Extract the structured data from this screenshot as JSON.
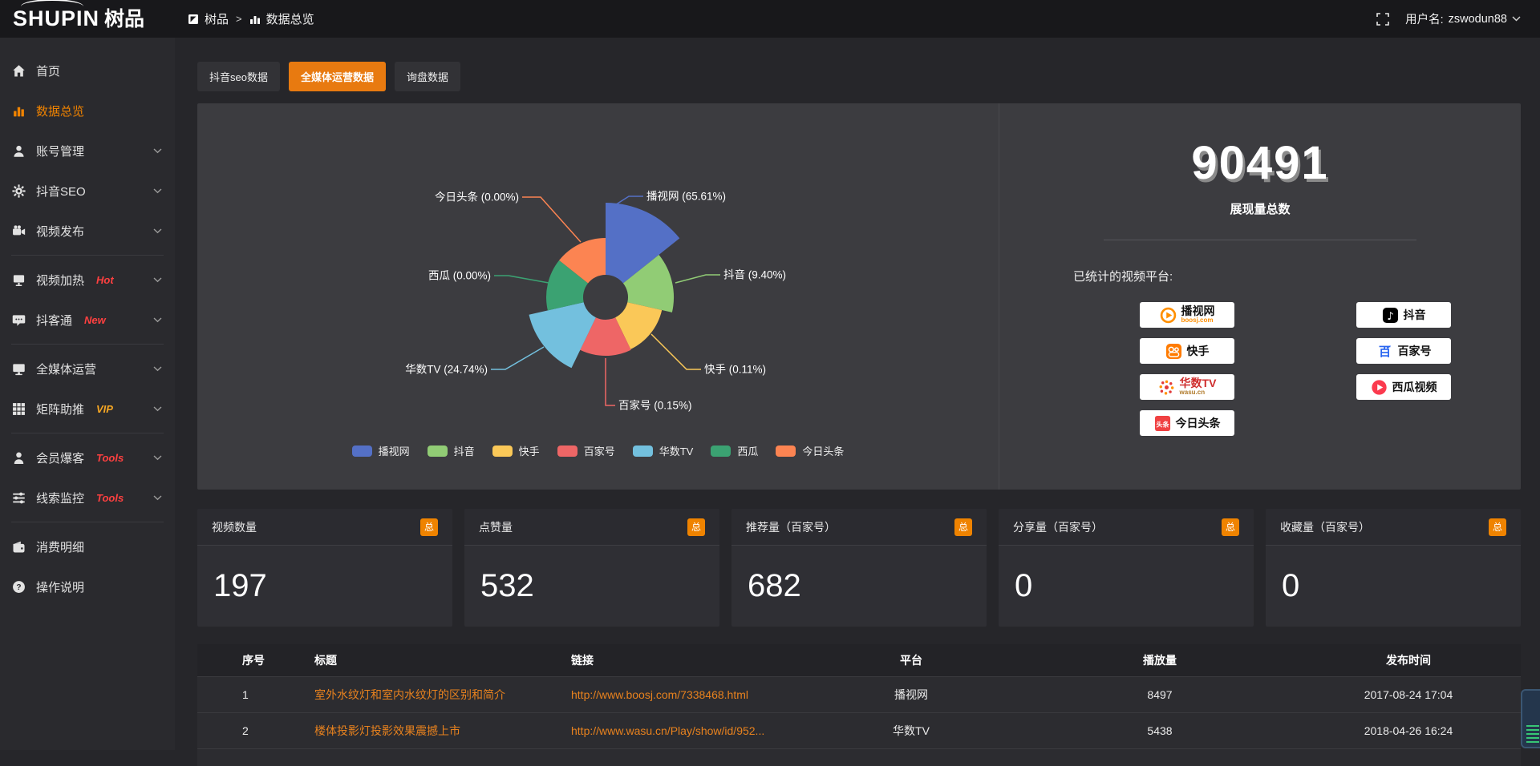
{
  "topbar": {
    "logo_text": "SHUPIN",
    "logo_suffix": "树品",
    "breadcrumb": {
      "root": "树品",
      "separator": ">",
      "current": "数据总览"
    },
    "username_label": "用户名:",
    "username": "zswodun88"
  },
  "sidebar": {
    "groups": [
      [
        {
          "label": "首页",
          "icon": "home-icon"
        },
        {
          "label": "数据总览",
          "icon": "bar-chart-icon",
          "active": true
        },
        {
          "label": "账号管理",
          "icon": "user-icon",
          "chevron": true
        },
        {
          "label": "抖音SEO",
          "icon": "gear-icon",
          "chevron": true
        },
        {
          "label": "视频发布",
          "icon": "video-camera-icon",
          "chevron": true
        }
      ],
      [
        {
          "label": "视频加热",
          "icon": "screen-icon",
          "badge": "Hot",
          "badge_color": "#ff4040",
          "chevron": true
        },
        {
          "label": "抖客通",
          "icon": "chat-icon",
          "badge": "New",
          "badge_color": "#ff4040",
          "chevron": true
        }
      ],
      [
        {
          "label": "全媒体运营",
          "icon": "monitor-icon",
          "chevron": true
        },
        {
          "label": "矩阵助推",
          "icon": "grid-icon",
          "badge": "VIP",
          "badge_color": "#f5a623",
          "chevron": true
        }
      ],
      [
        {
          "label": "会员爆客",
          "icon": "person-icon",
          "badge": "Tools",
          "badge_color": "#ff4040",
          "chevron": true
        },
        {
          "label": "线索监控",
          "icon": "sliders-icon",
          "badge": "Tools",
          "badge_color": "#ff4040",
          "chevron": true
        }
      ],
      [
        {
          "label": "消费明细",
          "icon": "wallet-icon"
        },
        {
          "label": "操作说明",
          "icon": "question-icon"
        }
      ]
    ]
  },
  "tabs": [
    {
      "label": "抖音seo数据",
      "active": false
    },
    {
      "label": "全媒体运营数据",
      "active": true
    },
    {
      "label": "询盘数据",
      "active": false
    }
  ],
  "chart_data": {
    "type": "pie",
    "style": "rose",
    "categories": [
      "播视网",
      "抖音",
      "快手",
      "百家号",
      "华数TV",
      "西瓜",
      "今日头条"
    ],
    "values": [
      65.61,
      9.4,
      0.11,
      0.15,
      24.74,
      0.0,
      0.0
    ],
    "percent_labels": [
      "65.61%",
      "9.40%",
      "0.11%",
      "0.15%",
      "24.74%",
      "0.00%",
      "0.00%"
    ],
    "colors": [
      "#5470c6",
      "#91cc75",
      "#fac858",
      "#ee6666",
      "#73c0de",
      "#3ba272",
      "#fc8452"
    ],
    "legend_position": "bottom",
    "unit": "percent"
  },
  "summary": {
    "total_value": "90491",
    "total_label": "展现量总数",
    "platforms_label": "已统计的视频平台:",
    "platform_columns": [
      [
        {
          "name": "播视网",
          "sub": "boosj.com",
          "logo": "boosj-logo"
        },
        {
          "name": "快手",
          "logo": "kuaishou-logo"
        },
        {
          "name": "华数TV",
          "sub": "wasu.cn",
          "logo": "wasu-logo",
          "name_color": "#cf2e2e",
          "sub_color": "#b07a2a"
        },
        {
          "name": "今日头条",
          "logo": "toutiao-logo"
        }
      ],
      [
        {
          "name": "抖音",
          "logo": "douyin-logo"
        },
        {
          "name": "百家号",
          "logo": "baijiahao-logo"
        },
        {
          "name": "西瓜视频",
          "logo": "xigua-logo"
        }
      ]
    ]
  },
  "stat_cards": [
    {
      "label": "视频数量",
      "badge": "总",
      "value": "197"
    },
    {
      "label": "点赞量",
      "badge": "总",
      "value": "532"
    },
    {
      "label": "推荐量（百家号）",
      "badge": "总",
      "value": "682"
    },
    {
      "label": "分享量（百家号）",
      "badge": "总",
      "value": "0"
    },
    {
      "label": "收藏量（百家号）",
      "badge": "总",
      "value": "0"
    }
  ],
  "table": {
    "headers": [
      "序号",
      "标题",
      "链接",
      "平台",
      "播放量",
      "发布时间"
    ],
    "rows": [
      {
        "index": "1",
        "title": "室外水纹灯和室内水纹灯的区别和简介",
        "link": "http://www.boosj.com/7338468.html",
        "platform": "播视网",
        "plays": "8497",
        "time": "2017-08-24 17:04"
      },
      {
        "index": "2",
        "title": "楼体投影灯投影效果震撼上市",
        "link": "http://www.wasu.cn/Play/show/id/952...",
        "platform": "华数TV",
        "plays": "5438",
        "time": "2018-04-26 16:24"
      }
    ]
  },
  "colors": {
    "accent": "#f08300",
    "tab_active": "#e87a10",
    "link": "#e8821e"
  }
}
